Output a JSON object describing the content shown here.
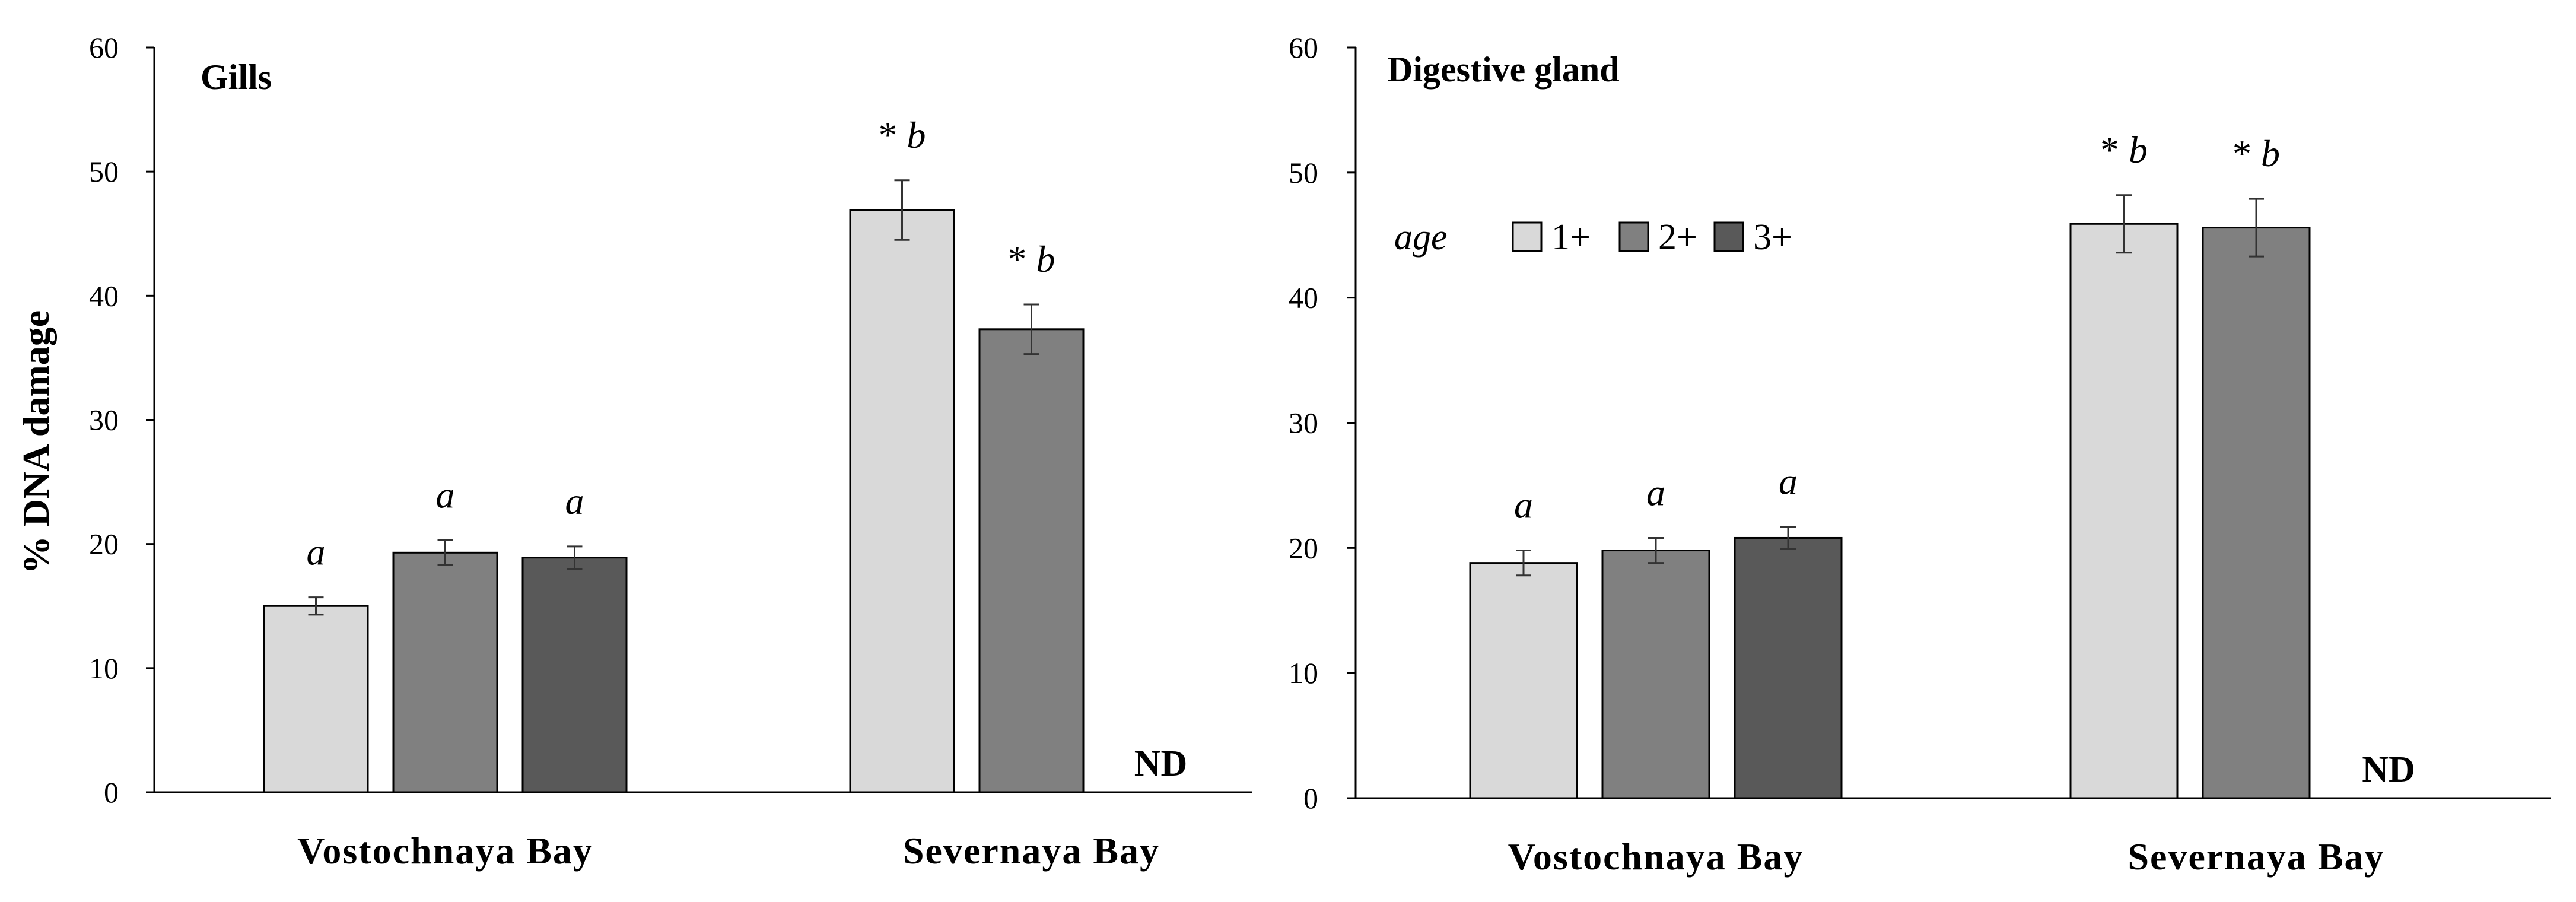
{
  "y_axis_label": "% DNA damage",
  "chart_data": [
    {
      "type": "bar",
      "title": "Gills",
      "ylabel": "% DNA damage",
      "xlabel": "",
      "ylim": [
        0,
        60
      ],
      "yticks": [
        0,
        10,
        20,
        30,
        40,
        50,
        60
      ],
      "categories": [
        "Vostochnaya  Bay",
        "Severnaya  Bay"
      ],
      "series": [
        {
          "name": "1+",
          "color": "#d9d9d9",
          "values": [
            15.0,
            46.9
          ],
          "errors": [
            0.7,
            2.4
          ],
          "labels": [
            {
              "star": "",
              "letter": "a"
            },
            {
              "star": "*",
              "letter": "b"
            }
          ]
        },
        {
          "name": "2+",
          "color": "#808080",
          "values": [
            19.3,
            37.3
          ],
          "errors": [
            1.0,
            2.0
          ],
          "labels": [
            {
              "star": "",
              "letter": "a"
            },
            {
              "star": "*",
              "letter": "b"
            }
          ]
        },
        {
          "name": "3+",
          "color": "#595959",
          "values": [
            18.9,
            null
          ],
          "errors": [
            0.9,
            null
          ],
          "labels": [
            {
              "star": "",
              "letter": "a"
            },
            null
          ]
        }
      ],
      "annotations": [
        {
          "category": 1,
          "series": 2,
          "text": "ND"
        }
      ]
    },
    {
      "type": "bar",
      "title": "Digestive gland",
      "ylabel": "",
      "xlabel": "",
      "ylim": [
        0,
        60
      ],
      "yticks": [
        0,
        10,
        20,
        30,
        40,
        50,
        60
      ],
      "categories": [
        "Vostochnaya  Bay",
        "Severnaya  Bay"
      ],
      "legend": {
        "title": "age",
        "entries": [
          "1+",
          "2+",
          "3+"
        ]
      },
      "series": [
        {
          "name": "1+",
          "color": "#d9d9d9",
          "values": [
            18.8,
            45.9
          ],
          "errors": [
            1.0,
            2.3
          ],
          "labels": [
            {
              "star": "",
              "letter": "a"
            },
            {
              "star": "*",
              "letter": "b"
            }
          ]
        },
        {
          "name": "2+",
          "color": "#808080",
          "values": [
            19.8,
            45.6
          ],
          "errors": [
            1.0,
            2.3
          ],
          "labels": [
            {
              "star": "",
              "letter": "a"
            },
            {
              "star": "*",
              "letter": "b"
            }
          ]
        },
        {
          "name": "3+",
          "color": "#595959",
          "values": [
            20.8,
            null
          ],
          "errors": [
            0.9,
            null
          ],
          "labels": [
            {
              "star": "",
              "letter": "a"
            },
            null
          ]
        }
      ],
      "annotations": [
        {
          "category": 1,
          "series": 2,
          "text": "ND"
        }
      ]
    }
  ]
}
